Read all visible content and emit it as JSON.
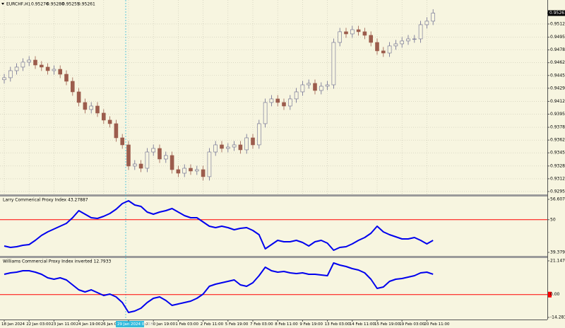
{
  "chart_data": [
    {
      "type": "candlestick",
      "title": "EURCHF,H1",
      "ohlc_labels": [
        "0.95276",
        "0.95280",
        "0.95255",
        "0.95261"
      ],
      "crosshair_label": "29 Jan 2024 07:00",
      "categories": [
        "18 Jan 2024",
        null,
        null,
        null,
        "22 Jan 03:00",
        null,
        null,
        null,
        "23 Jan 11:00",
        null,
        null,
        null,
        "24 Jan 19:00",
        null,
        null,
        null,
        "26 Jan 03:00",
        null,
        null,
        null,
        "29 Jan 11:00",
        null,
        null,
        null,
        "30 Jan 19:00",
        null,
        null,
        null,
        "1 Feb 03:00",
        null,
        null,
        null,
        "2 Feb 11:00",
        null,
        null,
        null,
        "5 Feb 19:00",
        null,
        null,
        null,
        "7 Feb 03:00",
        null,
        null,
        null,
        "8 Feb 11:00",
        null,
        null,
        null,
        "9 Feb 19:00",
        null,
        null,
        null,
        "13 Feb 03:00",
        null,
        null,
        null,
        "14 Feb 11:00",
        null,
        null,
        null,
        "15 Feb 19:00",
        null,
        null,
        null,
        "19 Feb 03:00",
        null,
        null,
        null,
        "20 Feb 11:00",
        null
      ],
      "open": [
        0.944,
        0.94426,
        0.94517,
        0.94563,
        0.94627,
        0.94654,
        0.9459,
        0.94563,
        0.94517,
        0.94535,
        0.94471,
        0.9438,
        0.94243,
        0.94106,
        0.94015,
        0.9406,
        0.93969,
        0.93878,
        0.93832,
        0.93649,
        0.93558,
        0.93284,
        0.93311,
        0.93256,
        0.93466,
        0.93512,
        0.93375,
        0.93421,
        0.93238,
        0.93192,
        0.93256,
        0.9322,
        0.93238,
        0.93147,
        0.93466,
        0.93558,
        0.93512,
        0.9353,
        0.93558,
        0.93494,
        0.93649,
        0.93558,
        0.93832,
        0.94106,
        0.94152,
        0.94106,
        0.9406,
        0.94152,
        0.94243,
        0.94334,
        0.94353,
        0.94261,
        0.94316,
        0.94334,
        0.94882,
        0.9502,
        0.94992,
        0.95047,
        0.9502,
        0.94974,
        0.94882,
        0.94773,
        0.94745,
        0.94837,
        0.94864,
        0.94901,
        0.94928,
        0.94928,
        0.95111,
        0.95157
      ],
      "high": [
        0.94476,
        0.94567,
        0.94613,
        0.94677,
        0.94704,
        0.94704,
        0.9464,
        0.94613,
        0.94585,
        0.94585,
        0.94521,
        0.9443,
        0.94293,
        0.94156,
        0.9411,
        0.9411,
        0.94019,
        0.93928,
        0.93882,
        0.93699,
        0.93608,
        0.93361,
        0.93361,
        0.93516,
        0.93562,
        0.93562,
        0.93471,
        0.93471,
        0.93288,
        0.93306,
        0.93306,
        0.93288,
        0.93288,
        0.93516,
        0.93608,
        0.93608,
        0.9358,
        0.93608,
        0.93608,
        0.93699,
        0.93699,
        0.93882,
        0.94156,
        0.94202,
        0.94202,
        0.94156,
        0.94202,
        0.94293,
        0.94384,
        0.94403,
        0.94403,
        0.94366,
        0.94384,
        0.94932,
        0.9507,
        0.9507,
        0.95097,
        0.95097,
        0.9507,
        0.95024,
        0.94932,
        0.94823,
        0.94887,
        0.94914,
        0.94951,
        0.94978,
        0.94978,
        0.95161,
        0.95207,
        0.95311
      ],
      "low": [
        0.9435,
        0.94376,
        0.94467,
        0.94513,
        0.94577,
        0.9454,
        0.94513,
        0.94467,
        0.94467,
        0.94421,
        0.9433,
        0.94193,
        0.94056,
        0.93965,
        0.93965,
        0.93919,
        0.93828,
        0.93782,
        0.93599,
        0.93508,
        0.93234,
        0.93234,
        0.93206,
        0.93206,
        0.93416,
        0.93325,
        0.93325,
        0.93188,
        0.93142,
        0.93142,
        0.9317,
        0.9317,
        0.93097,
        0.93097,
        0.93416,
        0.93462,
        0.93462,
        0.9348,
        0.93444,
        0.93444,
        0.93508,
        0.93508,
        0.93782,
        0.94056,
        0.94056,
        0.9401,
        0.9401,
        0.94102,
        0.94193,
        0.94284,
        0.94211,
        0.94211,
        0.94266,
        0.94284,
        0.94832,
        0.94942,
        0.94942,
        0.9497,
        0.94924,
        0.94832,
        0.94723,
        0.94695,
        0.94695,
        0.94787,
        0.94814,
        0.94851,
        0.94878,
        0.94878,
        0.95061,
        0.95107
      ],
      "close": [
        0.94426,
        0.94517,
        0.94563,
        0.94627,
        0.94654,
        0.9459,
        0.94563,
        0.94517,
        0.94535,
        0.94471,
        0.9438,
        0.94243,
        0.94106,
        0.94015,
        0.9406,
        0.93969,
        0.93878,
        0.93832,
        0.93649,
        0.93558,
        0.93284,
        0.93311,
        0.93256,
        0.93466,
        0.93512,
        0.93375,
        0.93421,
        0.93238,
        0.93192,
        0.93256,
        0.9322,
        0.93238,
        0.93147,
        0.93466,
        0.93558,
        0.93512,
        0.9353,
        0.93558,
        0.93494,
        0.93649,
        0.93558,
        0.93832,
        0.94106,
        0.94152,
        0.94106,
        0.9406,
        0.94152,
        0.94243,
        0.94334,
        0.94353,
        0.94261,
        0.94316,
        0.94334,
        0.94882,
        0.9502,
        0.94992,
        0.95047,
        0.9502,
        0.94974,
        0.94882,
        0.94773,
        0.94745,
        0.94837,
        0.94864,
        0.94901,
        0.94928,
        0.94928,
        0.95111,
        0.95157,
        0.95261
      ],
      "up_color": "#6b6b8f",
      "down_color": "#9c5c4c",
      "last_price": 0.95261,
      "ylim": [
        0.92918,
        0.95412
      ],
      "yticks": [
        {
          "value": 0.9512,
          "label": "0.95120"
        },
        0.9495,
        0.94785,
        {
          "value": 0.9462,
          "label": "0.94620"
        },
        0.94455,
        {
          "value": 0.9429,
          "label": "0.94290"
        },
        {
          "value": 0.9412,
          "label": "0.94120"
        },
        0.93955,
        0.93785,
        {
          "value": 0.9362,
          "label": "0.93620"
        },
        0.93455,
        0.93285,
        {
          "value": 0.9312,
          "label": "0.93120"
        },
        0.92955
      ],
      "grid": true
    },
    {
      "type": "line",
      "title": "Larry Commerical Proxy Index 43.27887",
      "color": "#0000ee",
      "level_color": "#ff0000",
      "values": [
        41.45,
        40.99,
        41.22,
        41.68,
        41.91,
        43.28,
        44.89,
        46.04,
        46.96,
        47.88,
        48.8,
        50.63,
        52.93,
        51.78,
        50.63,
        50.4,
        51.09,
        52.01,
        53.39,
        55.23,
        56.15,
        54.77,
        54.31,
        52.47,
        51.78,
        52.47,
        52.93,
        53.62,
        52.47,
        51.32,
        50.63,
        50.63,
        49.26,
        47.88,
        47.42,
        47.88,
        47.42,
        46.73,
        47.19,
        47.42,
        46.5,
        45.12,
        40.53,
        41.91,
        43.28,
        42.82,
        42.82,
        43.28,
        42.59,
        41.45,
        42.82,
        43.28,
        42.36,
        40.07,
        40.99,
        41.22,
        42.14,
        43.28,
        44.2,
        45.58,
        47.88,
        46.04,
        45.12,
        44.43,
        43.74,
        43.74,
        44.2,
        43.28,
        42.14,
        43.27887
      ],
      "levels": [
        50
      ],
      "ylim": [
        39.37927,
        56.60785
      ],
      "yticks": [
        39.37927,
        50,
        56.60785
      ]
    },
    {
      "type": "line",
      "title": "Williams Commercial Proxy Index inverted 12.7933",
      "color": "#0000ee",
      "level_color": "#ff0000",
      "values": [
        12.73,
        13.62,
        14.06,
        14.95,
        14.95,
        14.06,
        12.73,
        10.52,
        9.63,
        10.52,
        9.19,
        6.09,
        2.99,
        1.66,
        2.99,
        1.22,
        -0.55,
        0.33,
        -1.44,
        -4.98,
        -11.18,
        -10.3,
        -8.53,
        -4.98,
        -2.33,
        -1.44,
        -3.65,
        -6.75,
        -5.87,
        -4.98,
        -4.1,
        -2.33,
        0.33,
        5.2,
        6.53,
        7.42,
        8.3,
        9.19,
        6.09,
        5.2,
        7.42,
        11.85,
        17.16,
        14.95,
        14.06,
        14.5,
        13.62,
        13.18,
        13.62,
        12.73,
        12.73,
        12.29,
        11.85,
        19.82,
        18.49,
        17.6,
        16.28,
        15.39,
        13.62,
        9.63,
        3.88,
        4.76,
        8.3,
        9.63,
        10.08,
        10.97,
        11.85,
        13.62,
        14.06,
        12.7933
      ],
      "levels": [
        0
      ],
      "ylim": [
        -14.2836,
        21.1476
      ],
      "yticks": [
        -14.2836,
        {
          "value": 0,
          "label": "0.00"
        },
        21.1476
      ]
    }
  ]
}
